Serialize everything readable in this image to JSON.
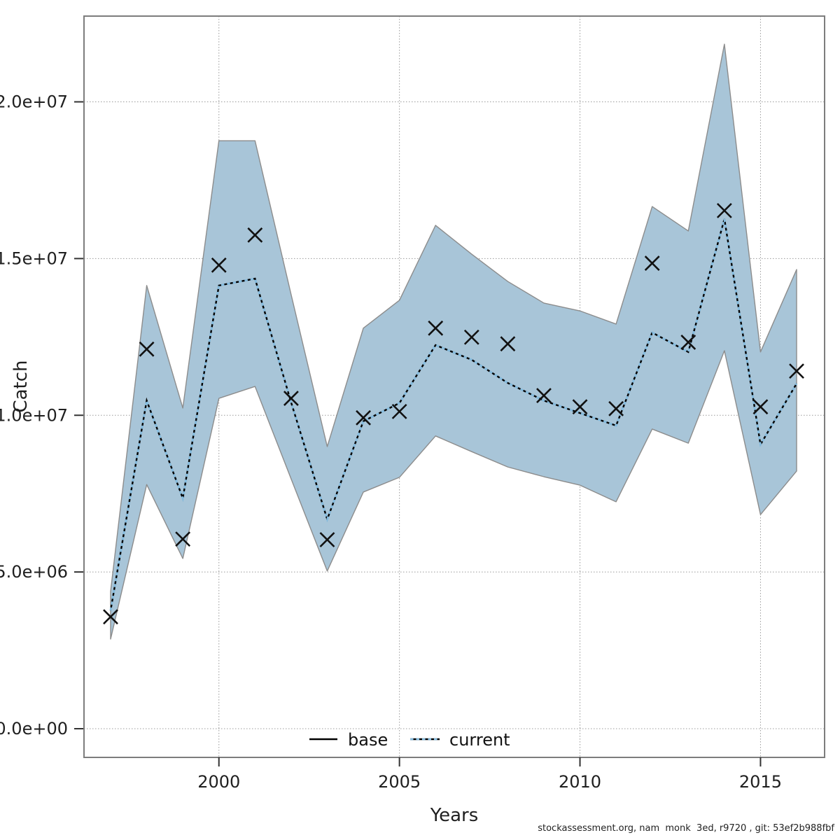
{
  "footer": {
    "text": "stockassessment.org, nam  monk  3ed, r9720 , git: 53ef2b988fbf"
  },
  "legend": {
    "items": [
      {
        "label": "base",
        "line": "solid",
        "color": "#000000"
      },
      {
        "label": "current",
        "line": "dotted",
        "color": "#85bcdf"
      }
    ]
  },
  "axes": {
    "x": {
      "label": "Years",
      "ticks": [
        {
          "value": 2000,
          "label": "2000"
        },
        {
          "value": 2005,
          "label": "2005"
        },
        {
          "value": 2010,
          "label": "2010"
        },
        {
          "value": 2015,
          "label": "2015"
        }
      ]
    },
    "y": {
      "label": "Catch",
      "ticks": [
        {
          "value": 0,
          "label": "0.0e+00"
        },
        {
          "value": 5000000,
          "label": "5.0e+06"
        },
        {
          "value": 10000000,
          "label": "1.0e+07"
        },
        {
          "value": 15000000,
          "label": "1.5e+07"
        },
        {
          "value": 20000000,
          "label": "2.0e+07"
        }
      ]
    }
  },
  "colors": {
    "band_fill": "#a8c5d8",
    "band_edge": "#8c8c8c",
    "base_line": "#000000",
    "current_line": "#85bcdf",
    "marker": "#111111",
    "grid": "#999999",
    "frame": "#7d7d7d"
  },
  "chart_data": {
    "type": "line",
    "title": "",
    "xlabel": "Years",
    "ylabel": "Catch",
    "xlim": [
      1996.26,
      2016.78
    ],
    "ylim": [
      -915000,
      22740000
    ],
    "grid": true,
    "legend_position": "bottom-center",
    "x": [
      1997,
      1998,
      1999,
      2000,
      2001,
      2002,
      2003,
      2004,
      2005,
      2006,
      2007,
      2008,
      2009,
      2010,
      2011,
      2012,
      2013,
      2014,
      2015,
      2016
    ],
    "series": [
      {
        "name": "base",
        "line": "solid",
        "color": "#000000",
        "values": [
          3770000,
          10470000,
          7350000,
          14140000,
          14360000,
          10410000,
          6680000,
          9810000,
          10390000,
          12240000,
          11770000,
          11030000,
          10470000,
          10070000,
          9670000,
          12640000,
          12020000,
          16260000,
          9070000,
          11010000
        ]
      },
      {
        "name": "current",
        "line": "dotted",
        "color": "#85bcdf",
        "values": [
          3770000,
          10470000,
          7350000,
          14140000,
          14360000,
          10410000,
          6680000,
          9810000,
          10390000,
          12240000,
          11770000,
          11030000,
          10470000,
          10070000,
          9670000,
          12640000,
          12020000,
          16260000,
          9070000,
          11010000
        ]
      }
    ],
    "band": {
      "name": "current-confidence-band",
      "fill": "#a8c5d8",
      "upper": [
        4380000,
        14140000,
        10230000,
        18760000,
        18760000,
        13850000,
        9000000,
        12780000,
        13670000,
        16060000,
        15140000,
        14270000,
        13580000,
        13330000,
        12910000,
        16660000,
        15880000,
        21840000,
        12020000,
        14650000
      ],
      "lower": [
        2860000,
        7790000,
        5430000,
        10540000,
        10920000,
        7970000,
        5030000,
        7550000,
        8020000,
        9340000,
        8840000,
        8350000,
        8040000,
        7770000,
        7240000,
        9560000,
        9110000,
        12060000,
        6830000,
        8220000
      ]
    },
    "observations": {
      "name": "catch-observations",
      "marker": "x",
      "color": "#111111",
      "values": [
        3570000,
        12110000,
        6050000,
        14790000,
        15750000,
        10540000,
        6030000,
        9920000,
        10120000,
        12780000,
        12490000,
        12280000,
        10630000,
        10270000,
        10210000,
        14850000,
        12330000,
        16530000,
        10270000,
        11410000
      ]
    }
  }
}
